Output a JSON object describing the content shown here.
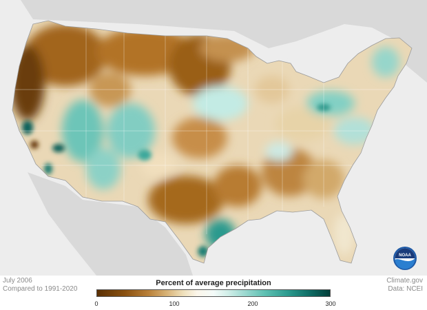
{
  "footer": {
    "date": "July 2006",
    "baseline": "Compared to 1991-2020",
    "source": "Climate.gov",
    "data_source": "Data: NCEI"
  },
  "legend": {
    "title": "Percent of average precipitation",
    "ticks": [
      "0",
      "100",
      "200",
      "300"
    ],
    "range": [
      0,
      300
    ],
    "colors": {
      "dry_extreme": "#5a3004",
      "dry": "#b98038",
      "normal": "#f7f4ee",
      "wet": "#5ec0b2",
      "wet_extreme": "#033f3a"
    }
  },
  "logo": {
    "text": "NOAA"
  }
}
